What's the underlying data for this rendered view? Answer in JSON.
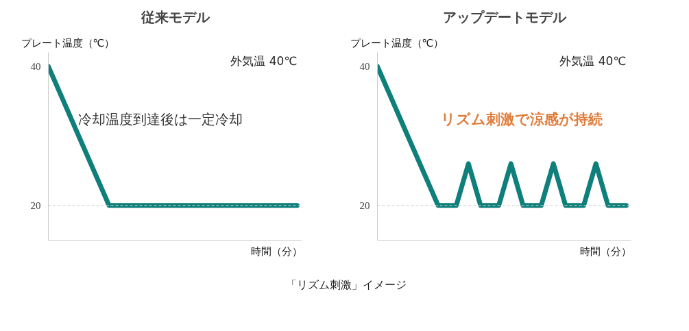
{
  "chart_data": [
    {
      "type": "line",
      "title": "従来モデル",
      "ylabel": "プレート温度（℃）",
      "xlabel": "時間（分）",
      "categories": [
        null,
        null,
        null,
        null,
        null,
        null,
        null,
        null,
        null,
        null,
        null,
        null,
        null,
        null,
        null,
        null,
        null,
        null,
        null,
        null,
        null,
        null,
        null,
        null,
        null,
        null,
        null,
        null,
        null,
        null,
        null,
        null,
        null,
        null,
        null,
        null,
        null,
        null,
        null,
        null,
        null,
        null
      ],
      "series": [
        {
          "color": "#0e7f7a",
          "values": [
            40,
            38,
            36,
            34,
            32,
            30,
            28,
            26,
            24,
            22,
            20,
            20,
            20,
            20,
            20,
            20,
            20,
            20,
            20,
            20,
            20,
            20,
            20,
            20,
            20,
            20,
            20,
            20,
            20,
            20,
            20,
            20,
            20,
            20,
            20,
            20,
            20,
            20,
            20,
            20,
            20,
            20
          ]
        }
      ],
      "ylim": [
        15,
        42
      ],
      "yticks": [
        20,
        40
      ],
      "tick_labels": "y",
      "grid": false,
      "marker": "none",
      "line_style": "solid",
      "ref_lines": [
        {
          "axis": "y",
          "value": 20,
          "color": "#d0d0d0",
          "line_style": "dashed"
        }
      ],
      "annotations": [
        "外気温 40℃",
        "冷却温度到達後は一定冷却"
      ]
    },
    {
      "type": "line",
      "title": "アップデートモデル",
      "ylabel": "プレート温度（℃）",
      "xlabel": "時間（分）",
      "categories": [
        null,
        null,
        null,
        null,
        null,
        null,
        null,
        null,
        null,
        null,
        null,
        null,
        null,
        null,
        null,
        null,
        null,
        null,
        null,
        null,
        null,
        null,
        null,
        null,
        null,
        null,
        null,
        null,
        null,
        null,
        null,
        null,
        null,
        null,
        null,
        null,
        null,
        null,
        null,
        null,
        null,
        null
      ],
      "series": [
        {
          "color": "#0e7f7a",
          "values": [
            40,
            38,
            36,
            34,
            32,
            30,
            28,
            26,
            24,
            22,
            20,
            20,
            20,
            20,
            23,
            26,
            23,
            20,
            20,
            20,
            20,
            23,
            26,
            23,
            20,
            20,
            20,
            20,
            23,
            26,
            23,
            20,
            20,
            20,
            20,
            23,
            26,
            23,
            20,
            20,
            20,
            20
          ]
        }
      ],
      "ylim": [
        15,
        42
      ],
      "yticks": [
        20,
        40
      ],
      "tick_labels": "y",
      "grid": false,
      "marker": "none",
      "line_style": "solid",
      "ref_lines": [
        {
          "axis": "y",
          "value": 20,
          "color": "#d0d0d0",
          "line_style": "dashed"
        }
      ],
      "annotations": [
        "外気温 40℃",
        "リズム刺激で涼感が持続"
      ]
    },
    {
      "type": "other",
      "annotations": [
        "「リズム刺激」イメージ"
      ]
    }
  ]
}
